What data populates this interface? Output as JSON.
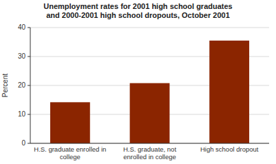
{
  "chart_data": {
    "type": "bar",
    "title": "Unemployment rates for 2001 high school graduates\nand 2000-2001 high school dropouts, October 2001",
    "ylabel": "Percent",
    "categories": [
      "H.S. graduate enrolled in\ncollege",
      "H.S. graduate, not\nenrolled in college",
      "High school dropout"
    ],
    "values": [
      14.2,
      20.8,
      35.5
    ],
    "color": "#8B2500",
    "ylim": [
      0,
      40
    ],
    "yticks": [
      0,
      10,
      20,
      30,
      40
    ],
    "grid": true
  }
}
